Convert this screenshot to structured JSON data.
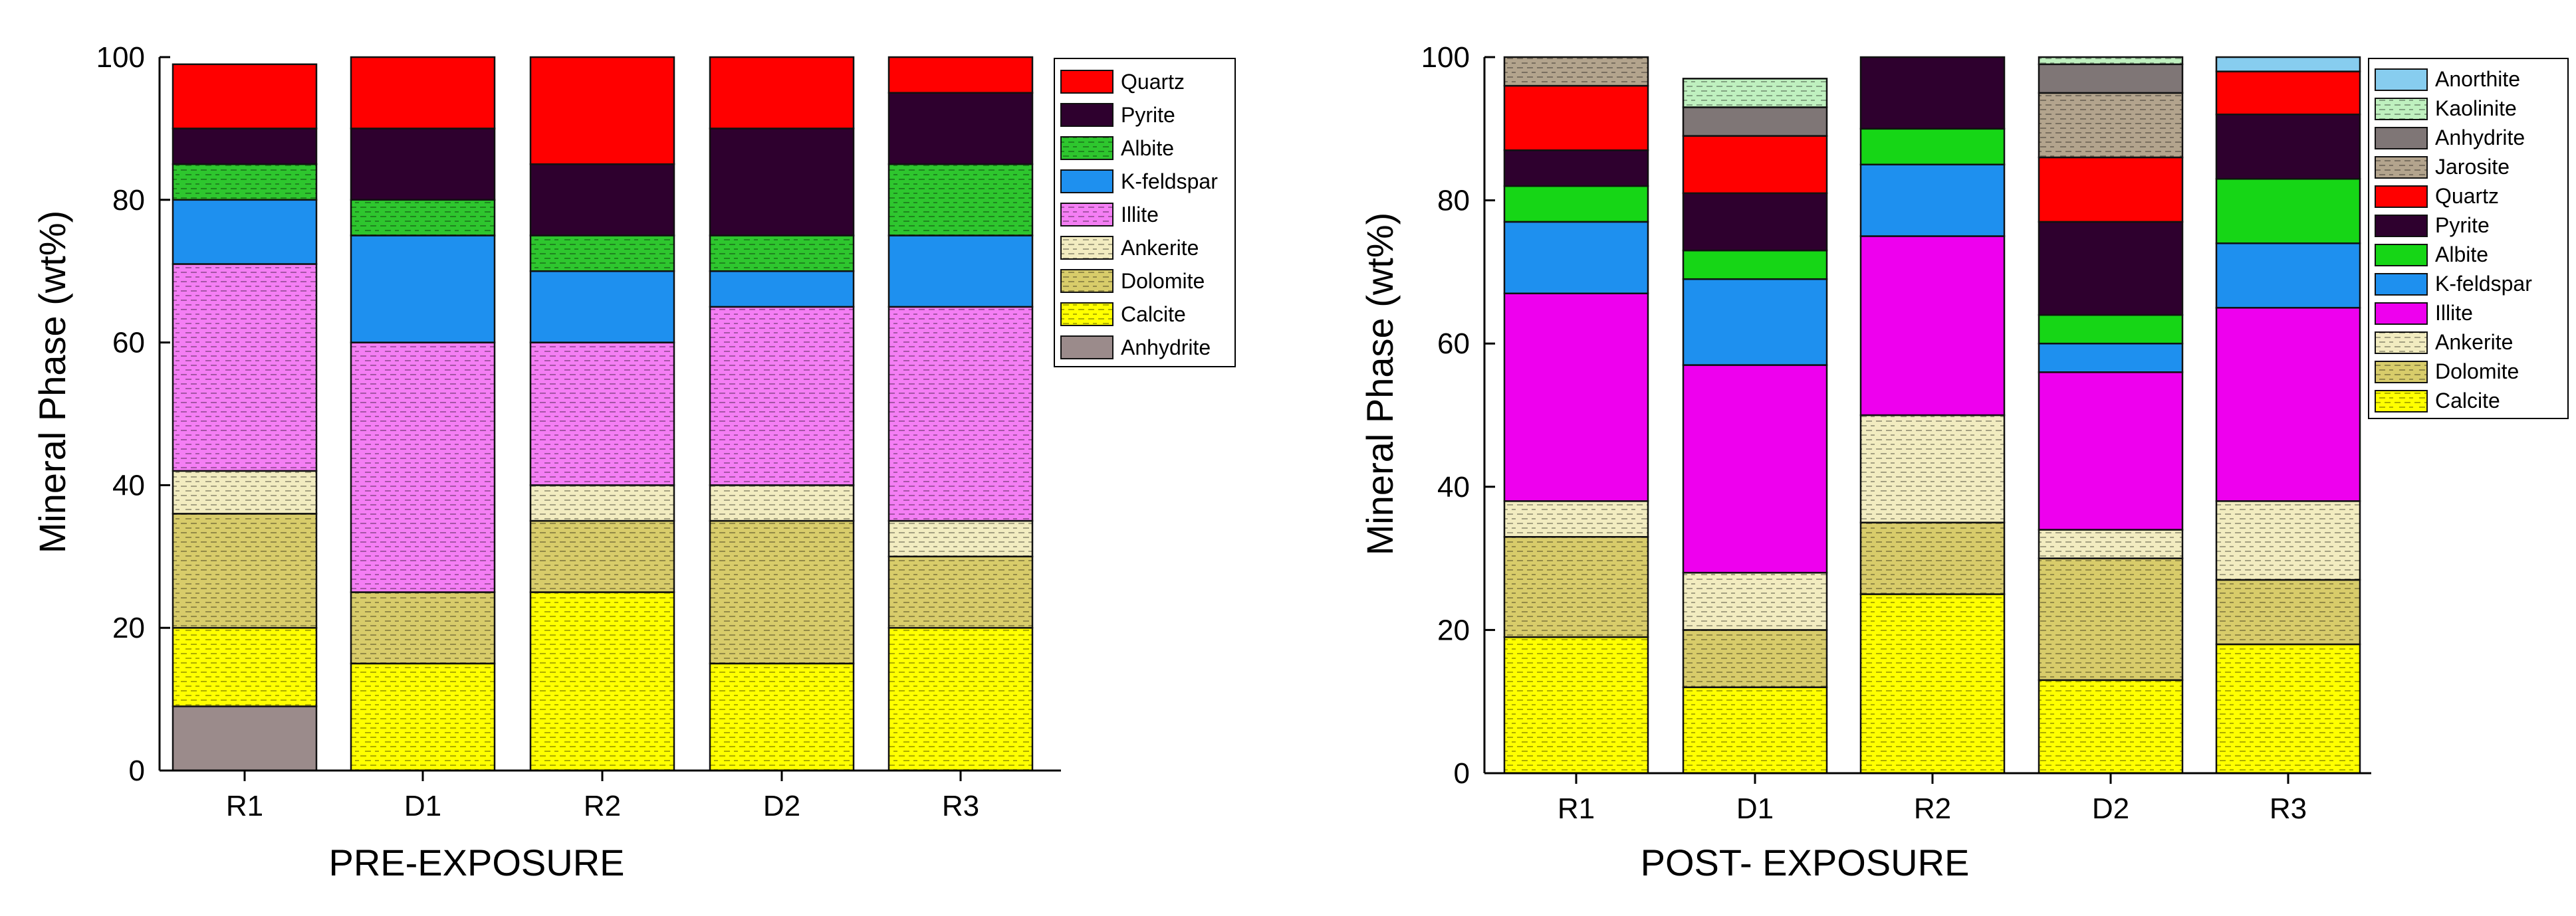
{
  "chart_data": [
    {
      "type": "bar",
      "stacked": true,
      "title": "",
      "xlabel": "PRE-EXPOSURE",
      "ylabel": "Mineral Phase (wt%)",
      "ylim": [
        0,
        100
      ],
      "yticks": [
        0,
        20,
        40,
        60,
        80,
        100
      ],
      "categories": [
        "R1",
        "D1",
        "R2",
        "D2",
        "R3"
      ],
      "legend_position": "top-right",
      "series": [
        {
          "name": "Anhydrite",
          "color": "#9b8b8b",
          "pattern": "solid",
          "values": [
            9,
            0,
            0,
            0,
            0
          ]
        },
        {
          "name": "Calcite",
          "color": "#ffff00",
          "pattern": "dash",
          "values": [
            11,
            15,
            25,
            15,
            20
          ]
        },
        {
          "name": "Dolomite",
          "color": "#d8cc6a",
          "pattern": "dash",
          "values": [
            16,
            10,
            10,
            20,
            10
          ]
        },
        {
          "name": "Ankerite",
          "color": "#f2ecc0",
          "pattern": "dash",
          "values": [
            6,
            0,
            5,
            5,
            5
          ]
        },
        {
          "name": "Illite",
          "color": "#f47ef4",
          "pattern": "dash",
          "values": [
            29,
            35,
            20,
            25,
            30
          ]
        },
        {
          "name": "K-feldspar",
          "color": "#1e90ef",
          "pattern": "solid",
          "values": [
            9,
            15,
            10,
            5,
            10
          ]
        },
        {
          "name": "Albite",
          "color": "#2ec62e",
          "pattern": "dash",
          "values": [
            5,
            5,
            5,
            5,
            10
          ]
        },
        {
          "name": "Pyrite",
          "color": "#2e002e",
          "pattern": "solid",
          "values": [
            5,
            10,
            10,
            15,
            10
          ]
        },
        {
          "name": "Quartz",
          "color": "#ff0000",
          "pattern": "solid",
          "values": [
            9,
            10,
            15,
            10,
            5
          ]
        }
      ],
      "legend_order": [
        "Quartz",
        "Pyrite",
        "Albite",
        "K-feldspar",
        "Illite",
        "Ankerite",
        "Dolomite",
        "Calcite",
        "Anhydrite"
      ]
    },
    {
      "type": "bar",
      "stacked": true,
      "title": "",
      "xlabel": "POST- EXPOSURE",
      "ylabel": "Mineral Phase (wt%)",
      "ylim": [
        0,
        100
      ],
      "yticks": [
        0,
        20,
        40,
        60,
        80,
        100
      ],
      "categories": [
        "R1",
        "D1",
        "R2",
        "D2",
        "R3"
      ],
      "legend_position": "top-right",
      "series": [
        {
          "name": "Calcite",
          "color": "#ffff00",
          "pattern": "dash",
          "values": [
            19,
            12,
            25,
            13,
            18
          ]
        },
        {
          "name": "Dolomite",
          "color": "#d8cc6a",
          "pattern": "dash",
          "values": [
            14,
            8,
            10,
            17,
            9
          ]
        },
        {
          "name": "Ankerite",
          "color": "#f2ecc0",
          "pattern": "dash",
          "values": [
            5,
            8,
            15,
            4,
            11
          ]
        },
        {
          "name": "Illite",
          "color": "#ee00ee",
          "pattern": "solid",
          "values": [
            29,
            29,
            25,
            22,
            27
          ]
        },
        {
          "name": "K-feldspar",
          "color": "#1e90ef",
          "pattern": "solid",
          "values": [
            10,
            12,
            10,
            4,
            9
          ]
        },
        {
          "name": "Albite",
          "color": "#16d616",
          "pattern": "solid",
          "values": [
            5,
            4,
            5,
            4,
            9
          ]
        },
        {
          "name": "Pyrite",
          "color": "#2e002e",
          "pattern": "solid",
          "values": [
            5,
            8,
            10,
            13,
            9
          ]
        },
        {
          "name": "Quartz",
          "color": "#ff0000",
          "pattern": "solid",
          "values": [
            9,
            8,
            0,
            9,
            6
          ]
        },
        {
          "name": "Jarosite",
          "color": "#b3a48d",
          "pattern": "dash",
          "values": [
            4,
            0,
            0,
            9,
            0
          ]
        },
        {
          "name": "Anhydrite",
          "color": "#7f7676",
          "pattern": "solid",
          "values": [
            0,
            4,
            0,
            4,
            0
          ]
        },
        {
          "name": "Kaolinite",
          "color": "#bff0bf",
          "pattern": "dash",
          "values": [
            0,
            4,
            0,
            1,
            0
          ]
        },
        {
          "name": "Anorthite",
          "color": "#87cdef",
          "pattern": "solid",
          "values": [
            0,
            0,
            0,
            0,
            2
          ]
        }
      ],
      "legend_order": [
        "Anorthite",
        "Kaolinite",
        "Anhydrite",
        "Jarosite",
        "Quartz",
        "Pyrite",
        "Albite",
        "K-feldspar",
        "Illite",
        "Ankerite",
        "Dolomite",
        "Calcite"
      ]
    }
  ]
}
